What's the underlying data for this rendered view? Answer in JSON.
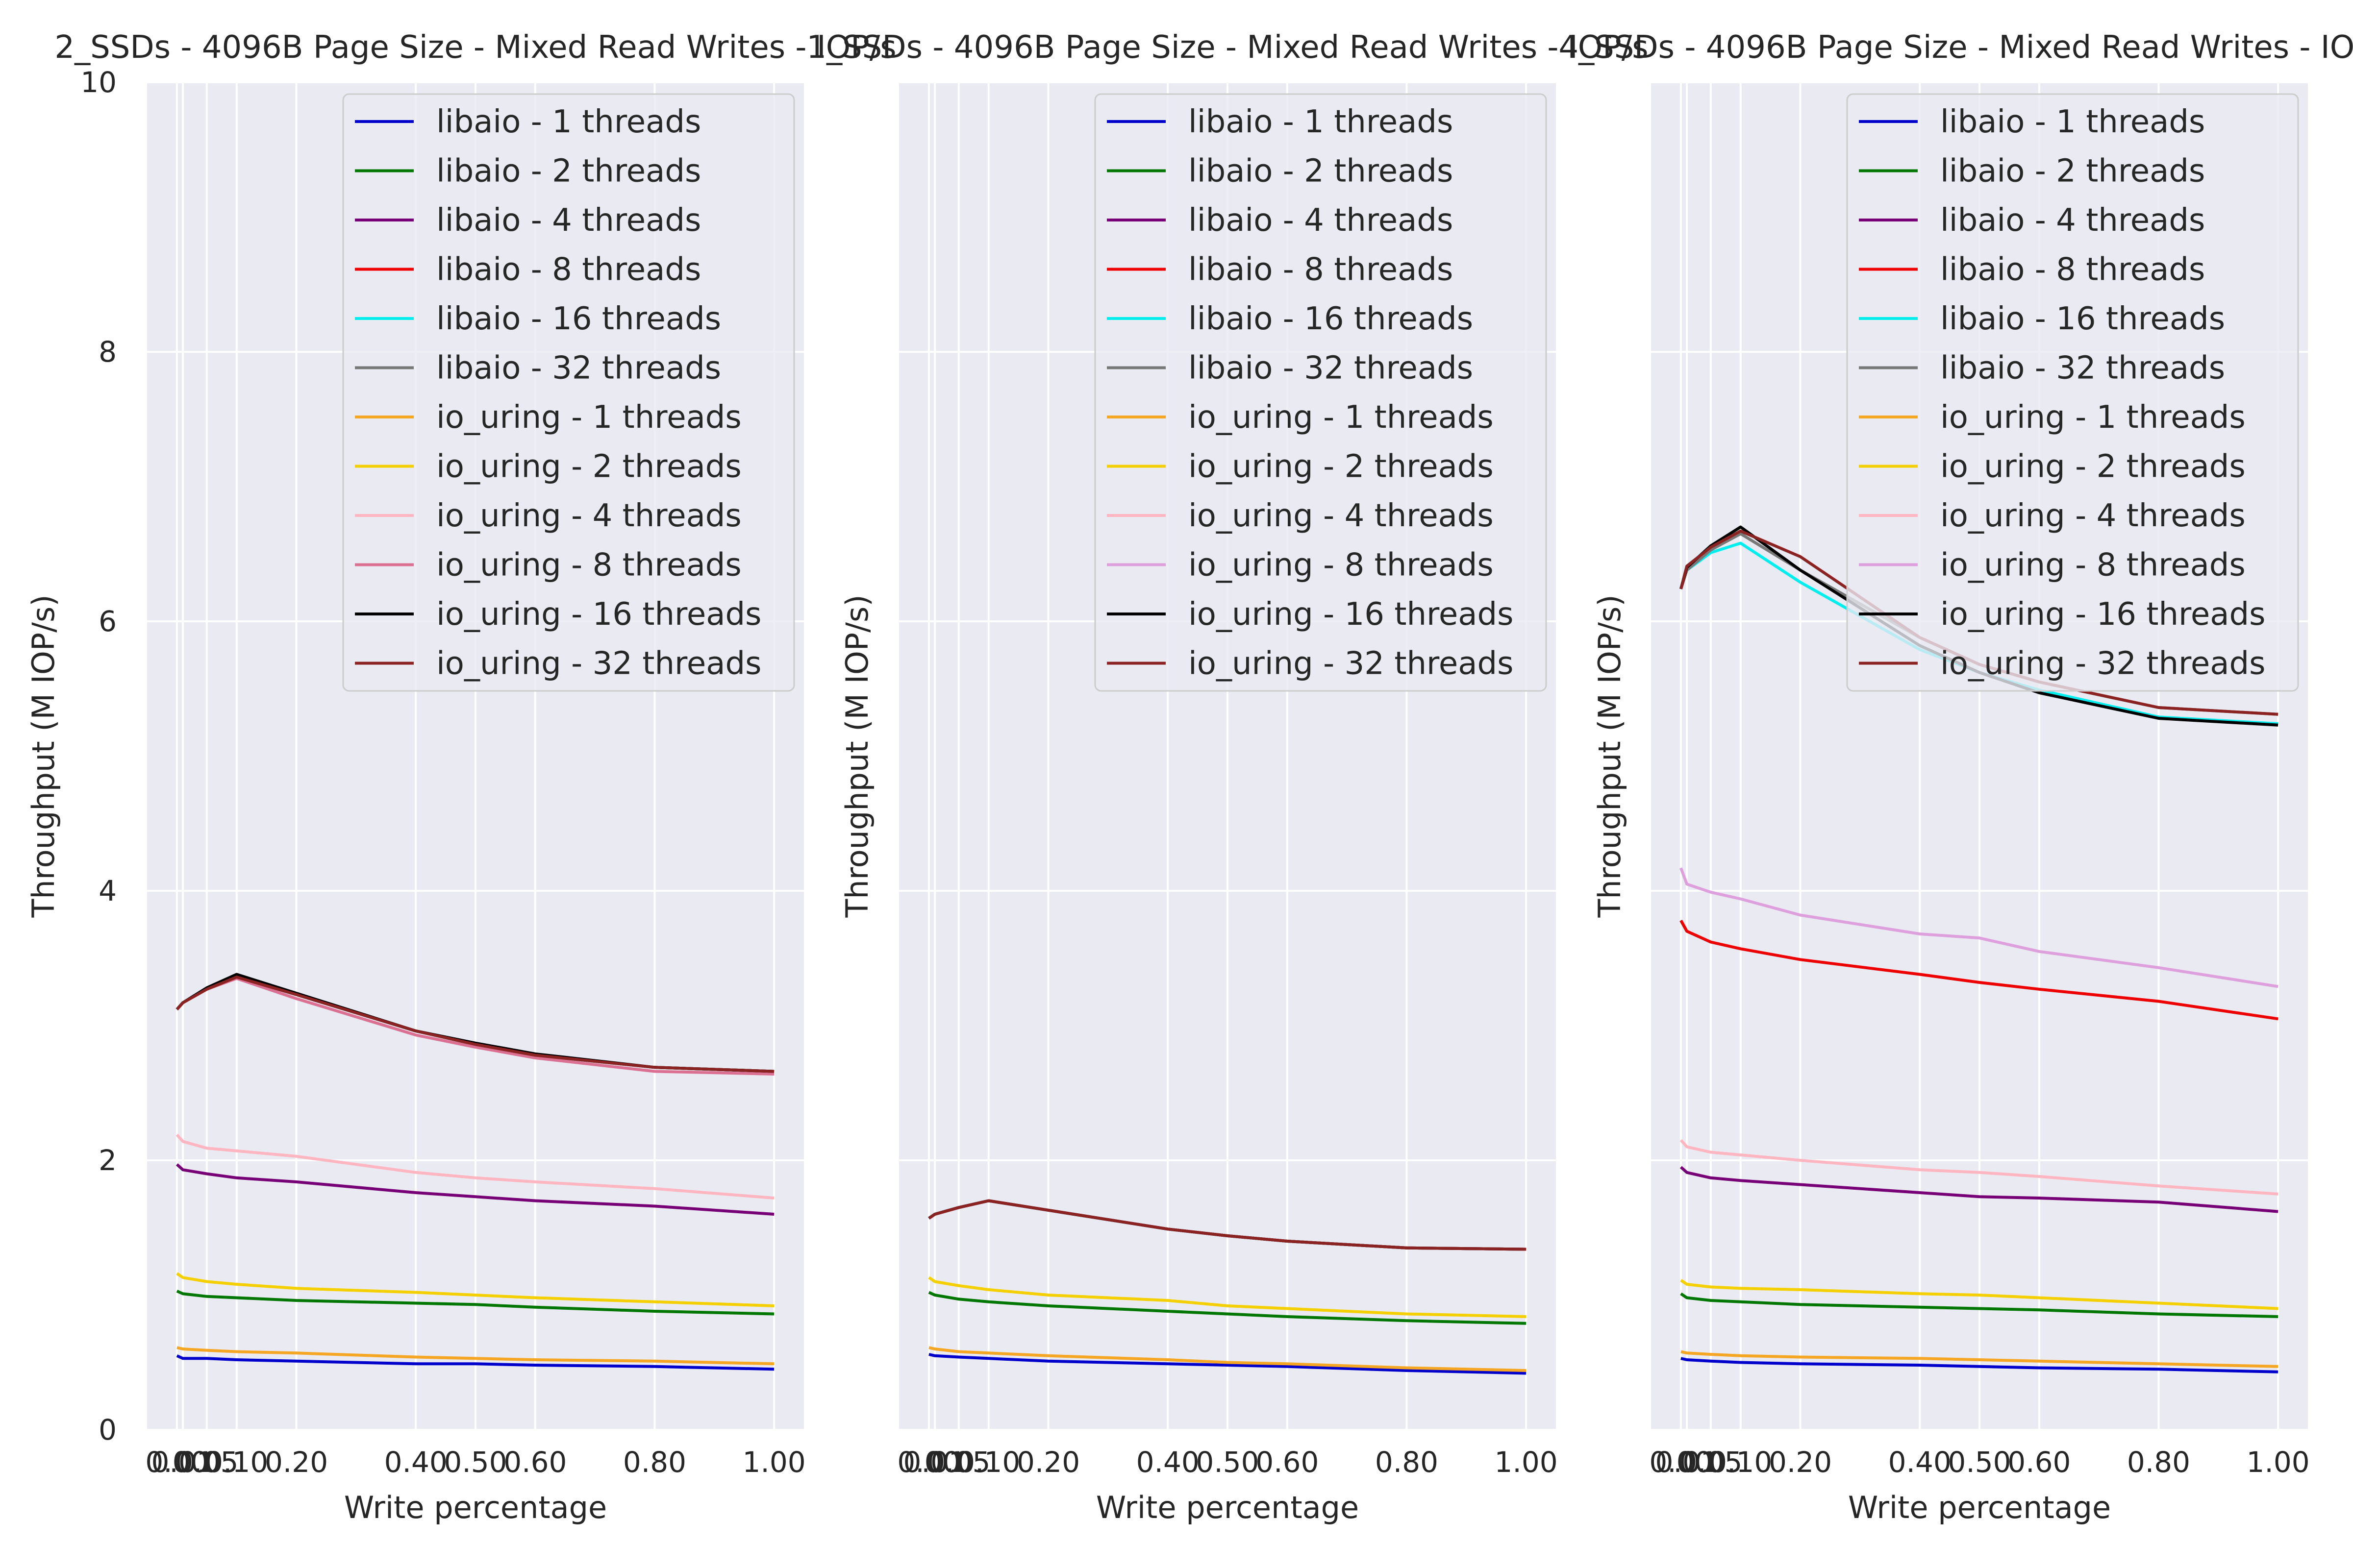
{
  "figure": {
    "shared_ylabel": "Throughput (M IOP/s)",
    "shared_xlabel": "Write percentage"
  },
  "chart_data": [
    {
      "type": "line",
      "title": "2_SSDs - 4096B Page Size - Mixed Read Writes - IOP/s",
      "xlabel": "Write percentage",
      "ylabel": "Throughput (M IOP/s)",
      "xlim": [
        -0.05,
        1.05
      ],
      "ylim": [
        0,
        10
      ],
      "grid": true,
      "legend_position": "top-right",
      "x_ticks": [
        0.0,
        0.01,
        0.05,
        0.1,
        0.2,
        0.4,
        0.5,
        0.6,
        0.8,
        1.0
      ],
      "x_tick_labels": [
        "0.00",
        "0.01",
        "0.05",
        "0.10",
        "0.20",
        "0.40",
        "0.50",
        "0.60",
        "0.80",
        "1.00"
      ],
      "y_ticks": [
        0,
        2,
        4,
        6,
        8,
        10
      ],
      "y_tick_labels": [
        "0",
        "2",
        "4",
        "6",
        "8",
        "10"
      ],
      "x": [
        0.0,
        0.01,
        0.05,
        0.1,
        0.2,
        0.4,
        0.5,
        0.6,
        0.8,
        1.0
      ],
      "series": [
        {
          "name": "libaio - 1 threads",
          "color": "#0000cc",
          "values": [
            0.55,
            0.53,
            0.53,
            0.52,
            0.51,
            0.49,
            0.49,
            0.48,
            0.47,
            0.45
          ]
        },
        {
          "name": "libaio - 2 threads",
          "color": "#007700",
          "values": [
            1.03,
            1.01,
            0.99,
            0.98,
            0.96,
            0.94,
            0.93,
            0.91,
            0.88,
            0.86
          ]
        },
        {
          "name": "libaio - 4 threads",
          "color": "#770077",
          "values": [
            1.97,
            1.93,
            1.9,
            1.87,
            1.84,
            1.76,
            1.73,
            1.7,
            1.66,
            1.6
          ]
        },
        {
          "name": "libaio - 8 threads",
          "color": "#ee0000",
          "values": [
            3.12,
            3.17,
            3.27,
            3.36,
            3.23,
            2.96,
            2.86,
            2.78,
            2.69,
            2.66
          ]
        },
        {
          "name": "libaio - 16 threads",
          "color": "#00eeee",
          "values": [
            3.12,
            3.17,
            3.27,
            3.36,
            3.23,
            2.96,
            2.86,
            2.78,
            2.69,
            2.66
          ]
        },
        {
          "name": "libaio - 32 threads",
          "color": "#777777",
          "values": [
            3.12,
            3.17,
            3.27,
            3.36,
            3.23,
            2.96,
            2.86,
            2.78,
            2.69,
            2.66
          ]
        },
        {
          "name": "io_uring - 1 threads",
          "color": "#f5a623",
          "values": [
            0.61,
            0.6,
            0.59,
            0.58,
            0.57,
            0.54,
            0.53,
            0.52,
            0.51,
            0.49
          ]
        },
        {
          "name": "io_uring - 2 threads",
          "color": "#f5d000",
          "values": [
            1.16,
            1.13,
            1.1,
            1.08,
            1.05,
            1.02,
            1.0,
            0.98,
            0.95,
            0.92
          ]
        },
        {
          "name": "io_uring - 4 threads",
          "color": "#ffb6c1",
          "values": [
            2.19,
            2.14,
            2.09,
            2.07,
            2.03,
            1.91,
            1.87,
            1.84,
            1.79,
            1.72
          ]
        },
        {
          "name": "io_uring - 8 threads",
          "color": "#db7093",
          "values": [
            3.12,
            3.17,
            3.27,
            3.35,
            3.2,
            2.93,
            2.84,
            2.76,
            2.66,
            2.64
          ]
        },
        {
          "name": "io_uring - 16 threads",
          "color": "#000000",
          "values": [
            3.12,
            3.17,
            3.28,
            3.38,
            3.24,
            2.96,
            2.87,
            2.79,
            2.69,
            2.66
          ]
        },
        {
          "name": "io_uring - 32 threads",
          "color": "#8b2323",
          "values": [
            3.12,
            3.17,
            3.27,
            3.36,
            3.23,
            2.96,
            2.86,
            2.78,
            2.69,
            2.66
          ]
        }
      ]
    },
    {
      "type": "line",
      "title": "1_SSDs - 4096B Page Size - Mixed Read Writes - IOP/s",
      "xlabel": "Write percentage",
      "ylabel": "Throughput (M IOP/s)",
      "xlim": [
        -0.05,
        1.05
      ],
      "ylim": [
        0,
        10
      ],
      "grid": true,
      "legend_position": "top-right",
      "x_ticks": [
        0.0,
        0.01,
        0.05,
        0.1,
        0.2,
        0.4,
        0.5,
        0.6,
        0.8,
        1.0
      ],
      "x_tick_labels": [
        "0.00",
        "0.01",
        "0.05",
        "0.10",
        "0.20",
        "0.40",
        "0.50",
        "0.60",
        "0.80",
        "1.00"
      ],
      "y_ticks": [
        0,
        2,
        4,
        6,
        8,
        10
      ],
      "y_tick_labels": [
        "",
        "",
        "",
        "",
        "",
        ""
      ],
      "x": [
        0.0,
        0.01,
        0.05,
        0.1,
        0.2,
        0.4,
        0.5,
        0.6,
        0.8,
        1.0
      ],
      "series": [
        {
          "name": "libaio - 1 threads",
          "color": "#0000cc",
          "values": [
            0.56,
            0.55,
            0.54,
            0.53,
            0.51,
            0.49,
            0.48,
            0.47,
            0.44,
            0.42
          ]
        },
        {
          "name": "libaio - 2 threads",
          "color": "#007700",
          "values": [
            1.02,
            1.0,
            0.97,
            0.95,
            0.92,
            0.88,
            0.86,
            0.84,
            0.81,
            0.79
          ]
        },
        {
          "name": "libaio - 4 threads",
          "color": "#770077",
          "values": [
            1.57,
            1.6,
            1.65,
            1.7,
            1.63,
            1.49,
            1.44,
            1.4,
            1.35,
            1.34
          ]
        },
        {
          "name": "libaio - 8 threads",
          "color": "#ee0000",
          "values": [
            1.57,
            1.6,
            1.65,
            1.7,
            1.63,
            1.49,
            1.44,
            1.4,
            1.35,
            1.34
          ]
        },
        {
          "name": "libaio - 16 threads",
          "color": "#00eeee",
          "values": [
            1.57,
            1.6,
            1.65,
            1.7,
            1.63,
            1.49,
            1.44,
            1.4,
            1.35,
            1.34
          ]
        },
        {
          "name": "libaio - 32 threads",
          "color": "#777777",
          "values": [
            1.57,
            1.6,
            1.65,
            1.7,
            1.63,
            1.49,
            1.44,
            1.4,
            1.35,
            1.34
          ]
        },
        {
          "name": "io_uring - 1 threads",
          "color": "#f5a623",
          "values": [
            0.61,
            0.6,
            0.58,
            0.57,
            0.55,
            0.52,
            0.5,
            0.49,
            0.46,
            0.44
          ]
        },
        {
          "name": "io_uring - 2 threads",
          "color": "#f5d000",
          "values": [
            1.13,
            1.1,
            1.07,
            1.04,
            1.0,
            0.96,
            0.92,
            0.9,
            0.86,
            0.84
          ]
        },
        {
          "name": "io_uring - 4 threads",
          "color": "#ffb6c1",
          "values": [
            1.57,
            1.6,
            1.65,
            1.7,
            1.63,
            1.49,
            1.44,
            1.4,
            1.35,
            1.34
          ]
        },
        {
          "name": "io_uring - 8 threads",
          "color": "#dda0dd",
          "values": [
            1.57,
            1.6,
            1.65,
            1.7,
            1.63,
            1.49,
            1.44,
            1.4,
            1.35,
            1.34
          ]
        },
        {
          "name": "io_uring - 16 threads",
          "color": "#000000",
          "values": [
            1.57,
            1.6,
            1.65,
            1.7,
            1.63,
            1.49,
            1.44,
            1.4,
            1.35,
            1.34
          ]
        },
        {
          "name": "io_uring - 32 threads",
          "color": "#8b2323",
          "values": [
            1.57,
            1.6,
            1.65,
            1.7,
            1.63,
            1.49,
            1.44,
            1.4,
            1.35,
            1.34
          ]
        }
      ]
    },
    {
      "type": "line",
      "title": "4_SSDs - 4096B Page Size - Mixed Read Writes - IOP/s",
      "xlabel": "Write percentage",
      "ylabel": "Throughput (M IOP/s)",
      "xlim": [
        -0.05,
        1.05
      ],
      "ylim": [
        0,
        10
      ],
      "grid": true,
      "legend_position": "top-right",
      "x_ticks": [
        0.0,
        0.01,
        0.05,
        0.1,
        0.2,
        0.4,
        0.5,
        0.6,
        0.8,
        1.0
      ],
      "x_tick_labels": [
        "0.00",
        "0.01",
        "0.05",
        "0.10",
        "0.20",
        "0.40",
        "0.50",
        "0.60",
        "0.80",
        "1.00"
      ],
      "y_ticks": [
        0,
        2,
        4,
        6,
        8,
        10
      ],
      "y_tick_labels": [
        "",
        "",
        "",
        "",
        "",
        ""
      ],
      "x": [
        0.0,
        0.01,
        0.05,
        0.1,
        0.2,
        0.4,
        0.5,
        0.6,
        0.8,
        1.0
      ],
      "series": [
        {
          "name": "libaio - 1 threads",
          "color": "#0000cc",
          "values": [
            0.53,
            0.52,
            0.51,
            0.5,
            0.49,
            0.48,
            0.47,
            0.46,
            0.45,
            0.43
          ]
        },
        {
          "name": "libaio - 2 threads",
          "color": "#007700",
          "values": [
            1.01,
            0.98,
            0.96,
            0.95,
            0.93,
            0.91,
            0.9,
            0.89,
            0.86,
            0.84
          ]
        },
        {
          "name": "libaio - 4 threads",
          "color": "#770077",
          "values": [
            1.95,
            1.91,
            1.87,
            1.85,
            1.82,
            1.76,
            1.73,
            1.72,
            1.69,
            1.62
          ]
        },
        {
          "name": "libaio - 8 threads",
          "color": "#ee0000",
          "values": [
            3.78,
            3.7,
            3.62,
            3.57,
            3.49,
            3.38,
            3.32,
            3.27,
            3.18,
            3.05
          ]
        },
        {
          "name": "libaio - 16 threads",
          "color": "#00eeee",
          "values": [
            6.24,
            6.38,
            6.51,
            6.58,
            6.29,
            5.79,
            5.62,
            5.49,
            5.29,
            5.24
          ]
        },
        {
          "name": "libaio - 32 threads",
          "color": "#777777",
          "values": [
            6.24,
            6.38,
            6.53,
            6.65,
            6.38,
            5.88,
            5.68,
            5.55,
            5.36,
            5.31
          ]
        },
        {
          "name": "io_uring - 1 threads",
          "color": "#f5a623",
          "values": [
            0.58,
            0.57,
            0.56,
            0.55,
            0.54,
            0.53,
            0.52,
            0.51,
            0.49,
            0.47
          ]
        },
        {
          "name": "io_uring - 2 threads",
          "color": "#f5d000",
          "values": [
            1.11,
            1.08,
            1.06,
            1.05,
            1.04,
            1.01,
            1.0,
            0.98,
            0.94,
            0.9
          ]
        },
        {
          "name": "io_uring - 4 threads",
          "color": "#ffb6c1",
          "values": [
            2.15,
            2.1,
            2.06,
            2.04,
            2.0,
            1.93,
            1.91,
            1.88,
            1.81,
            1.75
          ]
        },
        {
          "name": "io_uring - 8 threads",
          "color": "#dda0dd",
          "values": [
            4.17,
            4.05,
            3.99,
            3.94,
            3.82,
            3.68,
            3.65,
            3.55,
            3.43,
            3.29
          ]
        },
        {
          "name": "io_uring - 16 threads",
          "color": "#000000",
          "values": [
            6.24,
            6.4,
            6.56,
            6.7,
            6.38,
            5.82,
            5.62,
            5.47,
            5.28,
            5.23
          ]
        },
        {
          "name": "io_uring - 32 threads",
          "color": "#8b2323",
          "values": [
            6.24,
            6.41,
            6.55,
            6.67,
            6.48,
            5.88,
            5.68,
            5.55,
            5.36,
            5.31
          ]
        }
      ]
    }
  ]
}
